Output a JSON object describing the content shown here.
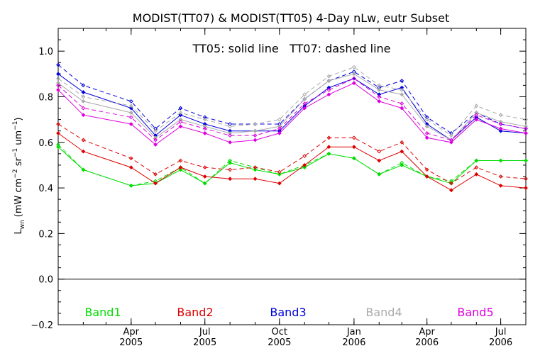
{
  "chart_data": {
    "type": "line",
    "title": "MODIST(TT07) & MODIST(TT05) 4-Day nLw, eutr Subset",
    "annotation": "TT05: solid line   TT07: dashed line",
    "ylabel": "L_wn (mW cm^-2 sr^-1 um^-1)",
    "ylabel_parts": {
      "l": "L",
      "sub": "wn",
      "pre": "(mW cm",
      "sup1": "−2",
      "mid": " sr",
      "sup2": "−1",
      "post": " um",
      "sup3": "−1",
      "close": ")"
    },
    "ylim": [
      -0.2,
      1.1
    ],
    "x_range": [
      "2005-01-01",
      "2006-08-01"
    ],
    "y_ticks": [
      {
        "value": -0.2,
        "label": "−0.2"
      },
      {
        "value": 0.0,
        "label": "0.0"
      },
      {
        "value": 0.2,
        "label": "0.2"
      },
      {
        "value": 0.4,
        "label": "0.4"
      },
      {
        "value": 0.6,
        "label": "0.6"
      },
      {
        "value": 0.8,
        "label": "0.8"
      },
      {
        "value": 1.0,
        "label": "1.0"
      }
    ],
    "x_ticks": [
      {
        "date": "2005-04-01",
        "month": "Apr",
        "year": "2005"
      },
      {
        "date": "2005-07-01",
        "month": "Jul",
        "year": "2005"
      },
      {
        "date": "2005-10-01",
        "month": "Oct",
        "year": "2005"
      },
      {
        "date": "2006-01-01",
        "month": "Jan",
        "year": "2006"
      },
      {
        "date": "2006-04-01",
        "month": "Apr",
        "year": "2006"
      },
      {
        "date": "2006-07-01",
        "month": "Jul",
        "year": "2006"
      }
    ],
    "x": [
      "2005-01-01",
      "2005-02-01",
      "2005-04-01",
      "2005-05-01",
      "2005-06-01",
      "2005-07-01",
      "2005-08-01",
      "2005-09-01",
      "2005-10-01",
      "2005-11-01",
      "2005-12-01",
      "2006-01-01",
      "2006-02-01",
      "2006-03-01",
      "2006-04-01",
      "2006-05-01",
      "2006-06-01",
      "2006-07-01",
      "2006-08-01"
    ],
    "series": [
      {
        "name": "Band1",
        "color": "#00dd00",
        "style": "solid",
        "values": [
          0.58,
          0.48,
          0.41,
          0.42,
          0.48,
          0.42,
          0.51,
          0.48,
          0.46,
          0.49,
          0.55,
          0.53,
          0.46,
          0.5,
          0.45,
          0.42,
          0.52,
          0.52,
          0.52
        ]
      },
      {
        "name": "Band1",
        "color": "#00dd00",
        "style": "dashed",
        "values": [
          0.59,
          0.48,
          0.41,
          0.43,
          0.49,
          0.42,
          0.52,
          0.49,
          0.46,
          0.5,
          0.55,
          0.53,
          0.46,
          0.51,
          0.45,
          0.43,
          0.52,
          0.52,
          0.52
        ]
      },
      {
        "name": "Band2",
        "color": "#dd0000",
        "style": "solid",
        "values": [
          0.64,
          0.56,
          0.49,
          0.42,
          0.49,
          0.45,
          0.44,
          0.44,
          0.42,
          0.5,
          0.58,
          0.58,
          0.52,
          0.56,
          0.45,
          0.39,
          0.46,
          0.41,
          0.4
        ]
      },
      {
        "name": "Band2",
        "color": "#dd0000",
        "style": "dashed",
        "values": [
          0.68,
          0.61,
          0.53,
          0.46,
          0.52,
          0.49,
          0.48,
          0.49,
          0.47,
          0.54,
          0.62,
          0.62,
          0.56,
          0.6,
          0.48,
          0.42,
          0.49,
          0.45,
          0.44
        ]
      },
      {
        "name": "Band3",
        "color": "#0000dd",
        "style": "solid",
        "values": [
          0.9,
          0.82,
          0.75,
          0.63,
          0.72,
          0.68,
          0.65,
          0.65,
          0.65,
          0.76,
          0.84,
          0.88,
          0.81,
          0.84,
          0.68,
          0.61,
          0.71,
          0.65,
          0.64
        ]
      },
      {
        "name": "Band3",
        "color": "#0000dd",
        "style": "dashed",
        "values": [
          0.94,
          0.85,
          0.78,
          0.66,
          0.75,
          0.71,
          0.68,
          0.68,
          0.68,
          0.79,
          0.87,
          0.91,
          0.84,
          0.87,
          0.71,
          0.64,
          0.73,
          0.68,
          0.66
        ]
      },
      {
        "name": "Band4",
        "color": "#aaaaaa",
        "style": "solid",
        "values": [
          0.86,
          0.78,
          0.73,
          0.62,
          0.7,
          0.67,
          0.64,
          0.65,
          0.67,
          0.79,
          0.87,
          0.9,
          0.83,
          0.81,
          0.67,
          0.61,
          0.73,
          0.69,
          0.67
        ]
      },
      {
        "name": "Band4",
        "color": "#aaaaaa",
        "style": "dashed",
        "values": [
          0.88,
          0.8,
          0.76,
          0.65,
          0.73,
          0.7,
          0.67,
          0.68,
          0.7,
          0.81,
          0.89,
          0.93,
          0.85,
          0.83,
          0.7,
          0.63,
          0.76,
          0.72,
          0.7
        ]
      },
      {
        "name": "Band5",
        "color": "#dd00dd",
        "style": "solid",
        "values": [
          0.83,
          0.72,
          0.68,
          0.59,
          0.67,
          0.64,
          0.6,
          0.61,
          0.64,
          0.75,
          0.81,
          0.86,
          0.78,
          0.75,
          0.62,
          0.6,
          0.7,
          0.66,
          0.64
        ]
      },
      {
        "name": "Band5",
        "color": "#dd00dd",
        "style": "dashed",
        "values": [
          0.85,
          0.75,
          0.71,
          0.61,
          0.69,
          0.66,
          0.63,
          0.63,
          0.66,
          0.77,
          0.83,
          0.88,
          0.8,
          0.77,
          0.64,
          0.61,
          0.72,
          0.68,
          0.66
        ]
      }
    ],
    "zero_line": 0.0,
    "legend": [
      {
        "label": "Band1",
        "color": "#00dd00"
      },
      {
        "label": "Band2",
        "color": "#dd0000"
      },
      {
        "label": "Band3",
        "color": "#0000dd"
      },
      {
        "label": "Band4",
        "color": "#aaaaaa"
      },
      {
        "label": "Band5",
        "color": "#dd00dd"
      }
    ],
    "legend_placement": "bottom inside plot",
    "grid": false
  }
}
